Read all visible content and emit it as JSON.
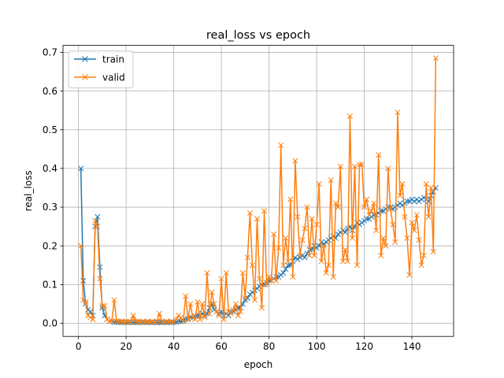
{
  "chart_data": {
    "type": "line",
    "title": "real_loss vs epoch",
    "xlabel": "epoch",
    "ylabel": "real_loss",
    "xlim": [
      -6.5,
      157.5
    ],
    "ylim": [
      -0.034,
      0.718
    ],
    "xticks": [
      0,
      20,
      40,
      60,
      80,
      100,
      120,
      140
    ],
    "yticks": [
      0.0,
      0.1,
      0.2,
      0.3,
      0.4,
      0.5,
      0.6,
      0.7
    ],
    "xtick_labels": [
      "0",
      "20",
      "40",
      "60",
      "80",
      "100",
      "120",
      "140"
    ],
    "ytick_labels": [
      "0.0",
      "0.1",
      "0.2",
      "0.3",
      "0.4",
      "0.5",
      "0.6",
      "0.7"
    ],
    "grid": true,
    "legend_position": "top-left",
    "marker": "x",
    "series": [
      {
        "name": "train",
        "color": "#1f77b4",
        "x": [
          1,
          2,
          3,
          4,
          5,
          6,
          7,
          8,
          9,
          10,
          11,
          12,
          13,
          14,
          15,
          16,
          17,
          18,
          19,
          20,
          21,
          22,
          23,
          24,
          25,
          26,
          27,
          28,
          29,
          30,
          31,
          32,
          33,
          34,
          35,
          36,
          37,
          38,
          39,
          40,
          41,
          42,
          43,
          44,
          45,
          46,
          47,
          48,
          49,
          50,
          51,
          52,
          53,
          54,
          55,
          56,
          57,
          58,
          59,
          60,
          61,
          62,
          63,
          64,
          65,
          66,
          67,
          68,
          69,
          70,
          71,
          72,
          73,
          74,
          75,
          76,
          77,
          78,
          79,
          80,
          81,
          82,
          83,
          84,
          85,
          86,
          87,
          88,
          89,
          90,
          91,
          92,
          93,
          94,
          95,
          96,
          97,
          98,
          99,
          100,
          101,
          102,
          103,
          104,
          105,
          106,
          107,
          108,
          109,
          110,
          111,
          112,
          113,
          114,
          115,
          116,
          117,
          118,
          119,
          120,
          121,
          122,
          123,
          124,
          125,
          126,
          127,
          128,
          129,
          130,
          131,
          132,
          133,
          134,
          135,
          136,
          137,
          138,
          139,
          140,
          141,
          142,
          143,
          144,
          145,
          146,
          147,
          148,
          149,
          150
        ],
        "y": [
          0.4,
          0.11,
          0.05,
          0.035,
          0.03,
          0.02,
          0.25,
          0.275,
          0.145,
          0.04,
          0.02,
          0.01,
          0.005,
          0.005,
          0.003,
          0.003,
          0.003,
          0.002,
          0.002,
          0.002,
          0.002,
          0.002,
          0.002,
          0.002,
          0.002,
          0.002,
          0.002,
          0.002,
          0.002,
          0.002,
          0.002,
          0.002,
          0.002,
          0.002,
          0.002,
          0.002,
          0.002,
          0.002,
          0.002,
          0.002,
          0.003,
          0.005,
          0.005,
          0.008,
          0.01,
          0.012,
          0.015,
          0.015,
          0.018,
          0.02,
          0.02,
          0.025,
          0.02,
          0.025,
          0.04,
          0.05,
          0.035,
          0.03,
          0.025,
          0.03,
          0.02,
          0.025,
          0.02,
          0.03,
          0.03,
          0.035,
          0.04,
          0.04,
          0.05,
          0.06,
          0.065,
          0.075,
          0.08,
          0.085,
          0.09,
          0.095,
          0.1,
          0.1,
          0.105,
          0.11,
          0.11,
          0.115,
          0.12,
          0.12,
          0.125,
          0.13,
          0.14,
          0.15,
          0.15,
          0.16,
          0.17,
          0.165,
          0.17,
          0.175,
          0.17,
          0.18,
          0.19,
          0.19,
          0.2,
          0.195,
          0.2,
          0.21,
          0.205,
          0.21,
          0.215,
          0.22,
          0.225,
          0.22,
          0.23,
          0.235,
          0.24,
          0.235,
          0.245,
          0.25,
          0.24,
          0.25,
          0.26,
          0.255,
          0.26,
          0.265,
          0.27,
          0.27,
          0.275,
          0.28,
          0.28,
          0.285,
          0.29,
          0.29,
          0.295,
          0.3,
          0.3,
          0.295,
          0.3,
          0.305,
          0.31,
          0.305,
          0.31,
          0.315,
          0.315,
          0.32,
          0.315,
          0.32,
          0.315,
          0.32,
          0.325,
          0.32,
          0.315,
          0.33,
          0.34,
          0.35
        ]
      },
      {
        "name": "valid",
        "color": "#ff7f0e",
        "x": [
          1,
          2,
          3,
          4,
          5,
          6,
          7,
          8,
          9,
          10,
          11,
          12,
          13,
          14,
          15,
          16,
          17,
          18,
          19,
          20,
          21,
          22,
          23,
          24,
          25,
          26,
          27,
          28,
          29,
          30,
          31,
          32,
          33,
          34,
          35,
          36,
          37,
          38,
          39,
          40,
          41,
          42,
          43,
          44,
          45,
          46,
          47,
          48,
          49,
          50,
          51,
          52,
          53,
          54,
          55,
          56,
          57,
          58,
          59,
          60,
          61,
          62,
          63,
          64,
          65,
          66,
          67,
          68,
          69,
          70,
          71,
          72,
          73,
          74,
          75,
          76,
          77,
          78,
          79,
          80,
          81,
          82,
          83,
          84,
          85,
          86,
          87,
          88,
          89,
          90,
          91,
          92,
          93,
          94,
          95,
          96,
          97,
          98,
          99,
          100,
          101,
          102,
          103,
          104,
          105,
          106,
          107,
          108,
          109,
          110,
          111,
          112,
          113,
          114,
          115,
          116,
          117,
          118,
          119,
          120,
          121,
          122,
          123,
          124,
          125,
          126,
          127,
          128,
          129,
          130,
          131,
          132,
          133,
          134,
          135,
          136,
          137,
          138,
          139,
          140,
          141,
          142,
          143,
          144,
          145,
          146,
          147,
          148,
          149,
          150
        ],
        "y": [
          0.2,
          0.06,
          0.055,
          0.02,
          0.015,
          0.01,
          0.265,
          0.25,
          0.115,
          0.045,
          0.045,
          0.01,
          0.005,
          0.005,
          0.06,
          0.005,
          0.005,
          0.005,
          0.002,
          0.005,
          0.005,
          0.002,
          0.02,
          0.005,
          0.005,
          0.003,
          0.005,
          0.003,
          0.005,
          0.003,
          0.005,
          0.003,
          0.005,
          0.025,
          0.005,
          0.003,
          0.005,
          0.003,
          0.005,
          0.003,
          0.01,
          0.02,
          0.015,
          0.005,
          0.07,
          0.01,
          0.05,
          0.015,
          0.01,
          0.055,
          0.01,
          0.05,
          0.015,
          0.13,
          0.025,
          0.08,
          0.05,
          0.03,
          0.02,
          0.115,
          0.01,
          0.13,
          0.03,
          0.025,
          0.035,
          0.05,
          0.02,
          0.03,
          0.13,
          0.065,
          0.17,
          0.285,
          0.15,
          0.06,
          0.27,
          0.115,
          0.04,
          0.29,
          0.1,
          0.12,
          0.11,
          0.23,
          0.11,
          0.195,
          0.46,
          0.15,
          0.22,
          0.16,
          0.32,
          0.12,
          0.42,
          0.275,
          0.175,
          0.215,
          0.245,
          0.3,
          0.175,
          0.27,
          0.175,
          0.255,
          0.36,
          0.16,
          0.2,
          0.13,
          0.15,
          0.37,
          0.12,
          0.31,
          0.3,
          0.405,
          0.16,
          0.19,
          0.16,
          0.535,
          0.22,
          0.405,
          0.15,
          0.41,
          0.41,
          0.3,
          0.32,
          0.28,
          0.29,
          0.31,
          0.24,
          0.435,
          0.175,
          0.22,
          0.2,
          0.4,
          0.295,
          0.255,
          0.21,
          0.545,
          0.33,
          0.36,
          0.275,
          0.22,
          0.125,
          0.26,
          0.24,
          0.28,
          0.215,
          0.15,
          0.175,
          0.36,
          0.275,
          0.35,
          0.185,
          0.685
        ]
      }
    ]
  }
}
